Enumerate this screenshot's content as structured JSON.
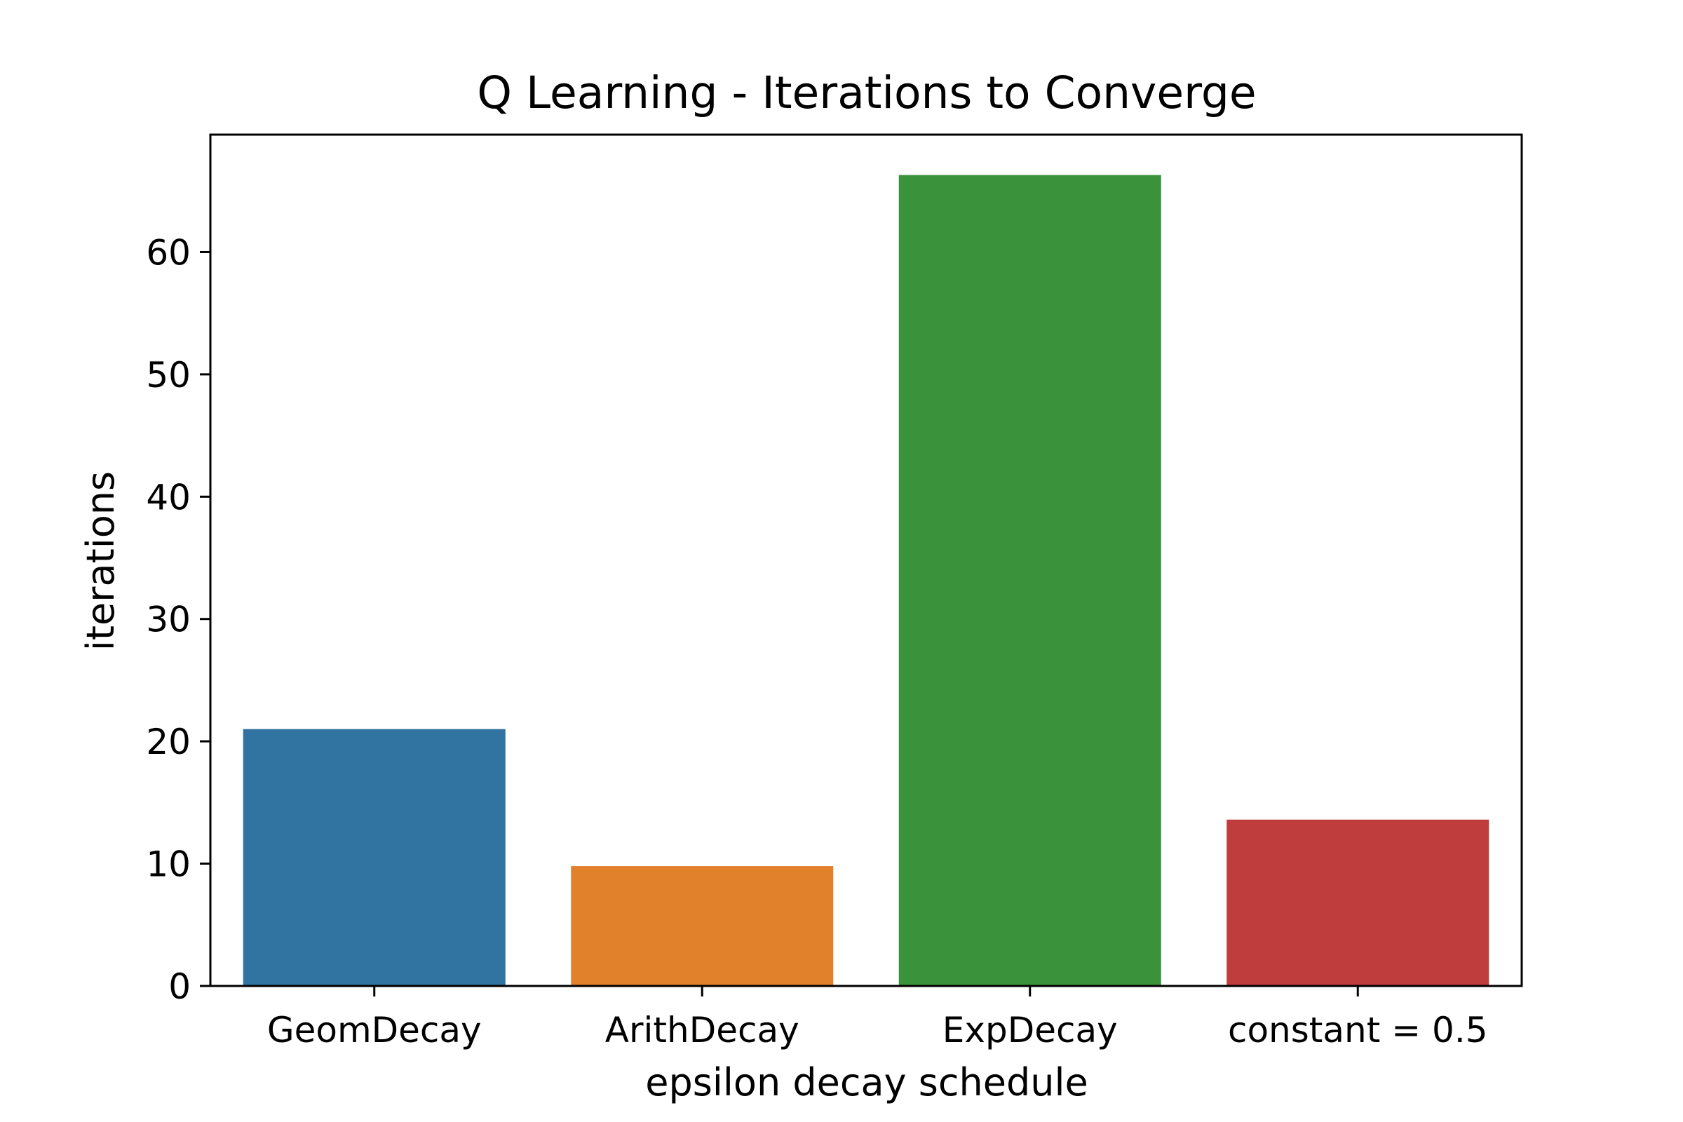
{
  "chart_data": {
    "type": "bar",
    "title": "Q Learning - Iterations to Converge",
    "xlabel": "epsilon decay schedule",
    "ylabel": "iterations",
    "categories": [
      "GeomDecay",
      "ArithDecay",
      "ExpDecay",
      "constant = 0.5"
    ],
    "values": [
      21,
      9.8,
      66.3,
      13.6
    ],
    "colors": [
      "#3274a1",
      "#e1812c",
      "#3a923a",
      "#c03d3e"
    ],
    "yticks": [
      0,
      10,
      20,
      30,
      40,
      50,
      60
    ],
    "ylim": [
      0,
      69.6
    ],
    "grid": false,
    "legend": "none"
  }
}
